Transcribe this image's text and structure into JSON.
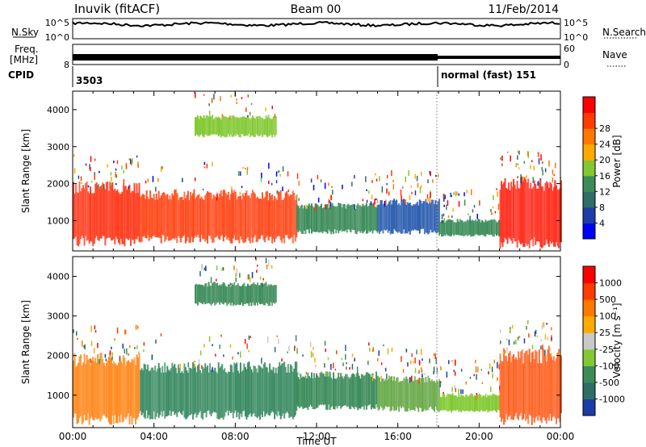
{
  "header": {
    "station": "Inuvik (fitACF)",
    "beam": "Beam 00",
    "date": "11/Feb/2014"
  },
  "top_panels": {
    "nsky_label": "N.Sky",
    "nsky_ticks": [
      "10^5",
      "10^0"
    ],
    "nsearch_label": "N.Search",
    "nsearch_ticks": [
      "10^5",
      "10^0"
    ],
    "freq_label": "Freq.",
    "freq_unit": "[MHz]",
    "freq_tick": "8",
    "nave_label": "Nave",
    "nave_ticks": [
      "60",
      "0"
    ],
    "cpid_label": "CPID",
    "cpid_segments": [
      {
        "name": "3503",
        "start_h": 0
      },
      {
        "name": "normal (fast) 151",
        "start_h": 18
      }
    ]
  },
  "chart_data": [
    {
      "type": "heatmap",
      "id": "power",
      "ylabel": "Slant Range [km]",
      "yticks": [
        "1000",
        "2000",
        "3000",
        "4000"
      ],
      "ytick_values": [
        1000,
        2000,
        3000,
        4000
      ],
      "ylim": [
        180,
        4500
      ],
      "xlim_hours": [
        0,
        24
      ],
      "colorbar_label": "Power [dB]",
      "colorbar_ticks": [
        "4",
        "8",
        "12",
        "16",
        "20",
        "24",
        "28"
      ],
      "colorbar_colors": [
        "#0000ff",
        "#1f3ca8",
        "#2e6e66",
        "#3c8c5a",
        "#82c832",
        "#ffaa00",
        "#ff7800",
        "#ff3c00",
        "#ff0000"
      ],
      "bands": [
        {
          "h0": 0.0,
          "h1": 3.3,
          "r0": 450,
          "r1": 1900,
          "color": "#ff3c1e"
        },
        {
          "h0": 3.3,
          "h1": 11.0,
          "r0": 500,
          "r1": 1700,
          "color": "#ff4a1c"
        },
        {
          "h0": 11.0,
          "h1": 15.0,
          "r0": 700,
          "r1": 1400,
          "color": "#3c8c5a"
        },
        {
          "h0": 15.0,
          "h1": 18.0,
          "r0": 700,
          "r1": 1500,
          "color": "#2e5fb0"
        },
        {
          "h0": 18.0,
          "h1": 21.0,
          "r0": 600,
          "r1": 1000,
          "color": "#3c8c5a"
        },
        {
          "h0": 21.0,
          "h1": 24.0,
          "r0": 400,
          "r1": 2000,
          "color": "#ff3020"
        },
        {
          "h0": 6.0,
          "h1": 10.0,
          "r0": 3300,
          "r1": 3800,
          "color": "#82c832"
        }
      ]
    },
    {
      "type": "heatmap",
      "id": "velocity",
      "ylabel": "Slant Range [km]",
      "yticks": [
        "1000",
        "2000",
        "3000",
        "4000"
      ],
      "ytick_values": [
        1000,
        2000,
        3000,
        4000
      ],
      "ylim": [
        180,
        4500
      ],
      "xlim_hours": [
        0,
        24
      ],
      "xticks": [
        "00:00",
        "04:00",
        "08:00",
        "12:00",
        "16:00",
        "20:00",
        "00:00"
      ],
      "xtick_hours": [
        0,
        4,
        8,
        12,
        16,
        20,
        24
      ],
      "xlabel": "Time UT",
      "colorbar_label": "Velocity [m s⁻¹]",
      "colorbar_ticks": [
        "1000",
        "500",
        "100",
        "25",
        "-25",
        "-100",
        "-500",
        "-1000"
      ],
      "colorbar_colors": [
        "#1a3ca8",
        "#2e6e66",
        "#3c8c5a",
        "#82c832",
        "#c8c8c8",
        "#ffaa00",
        "#ff7800",
        "#ff3c00",
        "#ff0000"
      ],
      "bands": [
        {
          "h0": 0.0,
          "h1": 3.3,
          "r0": 400,
          "r1": 1900,
          "color": "#ff8a20"
        },
        {
          "h0": 3.3,
          "h1": 11.0,
          "r0": 500,
          "r1": 1700,
          "color": "#3c8c64"
        },
        {
          "h0": 11.0,
          "h1": 15.0,
          "r0": 700,
          "r1": 1500,
          "color": "#3c8c5a"
        },
        {
          "h0": 15.0,
          "h1": 18.0,
          "r0": 650,
          "r1": 1400,
          "color": "#6aaa4a"
        },
        {
          "h0": 18.0,
          "h1": 21.0,
          "r0": 600,
          "r1": 1000,
          "color": "#82c832"
        },
        {
          "h0": 21.0,
          "h1": 24.0,
          "r0": 400,
          "r1": 2000,
          "color": "#ff6020"
        },
        {
          "h0": 6.0,
          "h1": 10.0,
          "r0": 3300,
          "r1": 3800,
          "color": "#3c8c5a"
        }
      ]
    }
  ]
}
